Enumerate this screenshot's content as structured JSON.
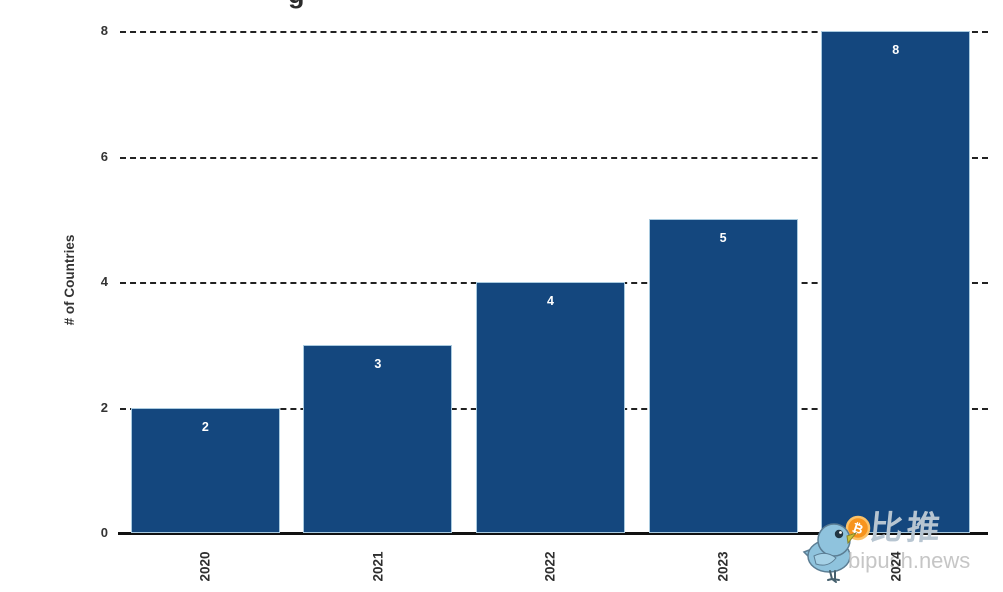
{
  "chart_data": {
    "type": "bar",
    "title_fragment": "g",
    "categories": [
      "2020",
      "2021",
      "2022",
      "2023",
      "2024"
    ],
    "values": [
      2,
      3,
      4,
      5,
      8
    ],
    "bar_value_labels": [
      "2",
      "3",
      "4",
      "5",
      "8"
    ],
    "xlabel": "",
    "ylabel": "# of Countries",
    "yticks": [
      "0",
      "2",
      "4",
      "6",
      "8"
    ],
    "ylim": [
      0,
      8
    ],
    "grid": "horizontal-dashed",
    "legend": "none",
    "bar_color": "#14477E",
    "bar_edge_color": "#a9cadf",
    "value_label_color": "#FFFFFF",
    "tick_label_color": "#2e2e2e"
  },
  "watermark": {
    "brand_cn": "比推",
    "brand_domain": "bipush.news",
    "bitcoin_symbol": "₿",
    "bird_color": "#8fc3dd",
    "coin_color": "#f7941d"
  }
}
